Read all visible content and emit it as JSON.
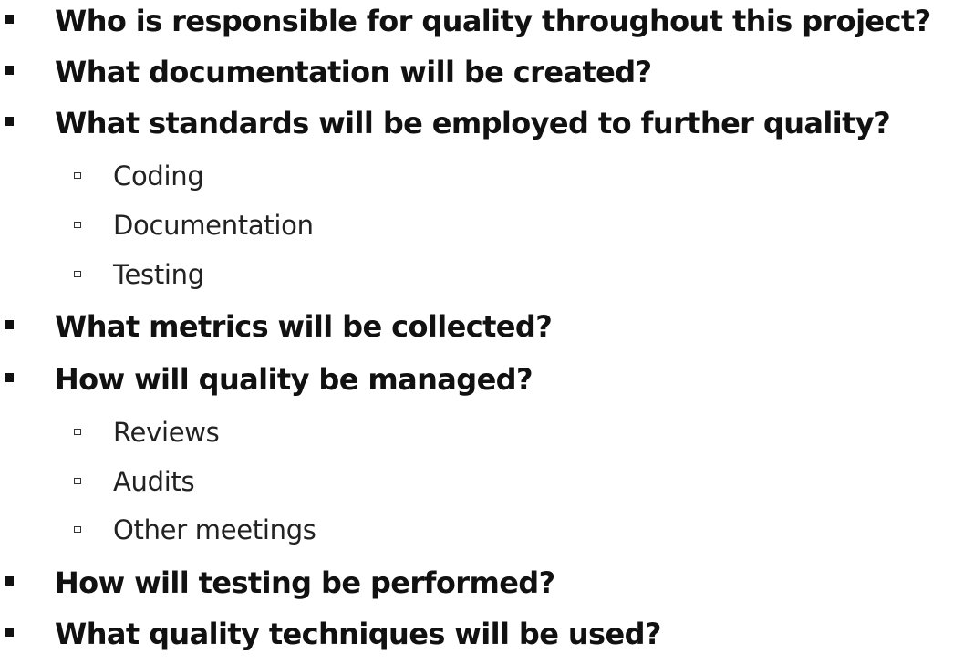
{
  "slide": {
    "items": [
      {
        "level": 1,
        "text": "Who is responsible for quality throughout this project?"
      },
      {
        "level": 1,
        "text": "What documentation will be created?"
      },
      {
        "level": 1,
        "text": "What standards will be employed to further quality?"
      },
      {
        "level": 2,
        "text": "Coding"
      },
      {
        "level": 2,
        "text": "Documentation"
      },
      {
        "level": 2,
        "text": "Testing"
      },
      {
        "level": 1,
        "text": "What metrics will be collected?"
      },
      {
        "level": 1,
        "text": "How will quality be managed?"
      },
      {
        "level": 2,
        "text": "Reviews"
      },
      {
        "level": 2,
        "text": "Audits"
      },
      {
        "level": 2,
        "text": "Other meetings"
      },
      {
        "level": 1,
        "text": "How will testing be performed?"
      },
      {
        "level": 1,
        "text": "What quality techniques will be used?"
      }
    ]
  }
}
